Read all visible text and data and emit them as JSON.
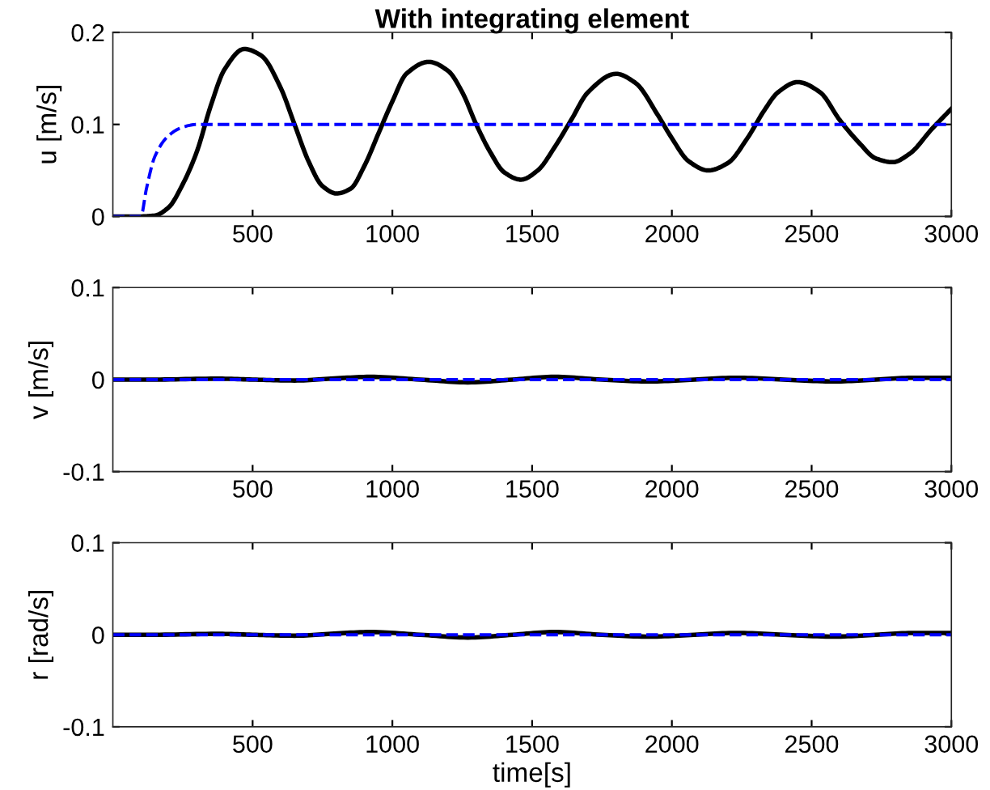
{
  "chart_data": [
    {
      "type": "line",
      "title": "With integrating element",
      "ylabel": "u [m/s]",
      "xlim": [
        0,
        3000
      ],
      "xticks": [
        500,
        1000,
        1500,
        2000,
        2500,
        3000
      ],
      "ylim": [
        0,
        0.2
      ],
      "yticks": [
        0,
        0.1,
        0.2
      ],
      "series": [
        {
          "color": "#000000",
          "line_style": "solid",
          "x": [
            0,
            100,
            150,
            200,
            250,
            300,
            350,
            400,
            470,
            530,
            600,
            650,
            700,
            750,
            800,
            850,
            900,
            950,
            1000,
            1050,
            1130,
            1200,
            1250,
            1300,
            1350,
            1400,
            1460,
            1520,
            1580,
            1640,
            1700,
            1800,
            1870,
            1950,
            2000,
            2060,
            2130,
            2200,
            2270,
            2330,
            2380,
            2450,
            2530,
            2600,
            2670,
            2730,
            2790,
            2850,
            2930,
            3000
          ],
          "values": [
            0,
            0,
            0.001,
            0.01,
            0.035,
            0.07,
            0.12,
            0.16,
            0.182,
            0.175,
            0.14,
            0.1,
            0.06,
            0.033,
            0.025,
            0.03,
            0.055,
            0.09,
            0.125,
            0.155,
            0.168,
            0.158,
            0.135,
            0.1,
            0.07,
            0.048,
            0.04,
            0.05,
            0.075,
            0.105,
            0.135,
            0.155,
            0.145,
            0.11,
            0.085,
            0.06,
            0.05,
            0.058,
            0.085,
            0.115,
            0.135,
            0.146,
            0.135,
            0.105,
            0.08,
            0.063,
            0.059,
            0.068,
            0.095,
            0.117
          ]
        },
        {
          "color": "#0000ff",
          "line_style": "dashed",
          "x": [
            0,
            100,
            120,
            150,
            200,
            250,
            300,
            3000
          ],
          "values": [
            0,
            0,
            0.03,
            0.065,
            0.088,
            0.097,
            0.1,
            0.1
          ]
        }
      ]
    },
    {
      "type": "line",
      "ylabel": "v [m/s]",
      "xlim": [
        0,
        3000
      ],
      "xticks": [
        500,
        1000,
        1500,
        2000,
        2500,
        3000
      ],
      "ylim": [
        -0.1,
        0.1
      ],
      "yticks": [
        {
          "value": -0.1,
          "label": "-0.1"
        },
        0,
        0.1
      ],
      "series": [
        {
          "color": "#000000",
          "line_style": "solid",
          "x": [
            0,
            150,
            370,
            500,
            650,
            780,
            920,
            1100,
            1270,
            1430,
            1580,
            1750,
            1920,
            2080,
            2230,
            2400,
            2580,
            2730,
            2870,
            3000
          ],
          "values": [
            0,
            0,
            0.001,
            0,
            -0.001,
            0.001,
            0.003,
            0,
            -0.003,
            0,
            0.003,
            0,
            -0.002,
            0,
            0.002,
            0,
            -0.002,
            0,
            0.002,
            0.002
          ]
        },
        {
          "color": "#0000ff",
          "line_style": "dashed",
          "x": [
            0,
            3000
          ],
          "values": [
            0,
            0
          ]
        }
      ]
    },
    {
      "type": "line",
      "ylabel": "r [rad/s]",
      "xlabel": "time[s]",
      "xlim": [
        0,
        3000
      ],
      "xticks": [
        500,
        1000,
        1500,
        2000,
        2500,
        3000
      ],
      "ylim": [
        -0.1,
        0.1
      ],
      "yticks": [
        {
          "value": -0.1,
          "label": "-0.1"
        },
        0,
        0.1
      ],
      "series": [
        {
          "color": "#000000",
          "line_style": "solid",
          "x": [
            0,
            150,
            370,
            500,
            650,
            780,
            920,
            1100,
            1270,
            1430,
            1580,
            1750,
            1920,
            2080,
            2230,
            2400,
            2580,
            2730,
            2870,
            3000
          ],
          "values": [
            0,
            0,
            0.001,
            0,
            -0.001,
            0.001,
            0.003,
            0,
            -0.003,
            0,
            0.003,
            0,
            -0.002,
            0,
            0.002,
            0,
            -0.002,
            0,
            0.002,
            0.002
          ]
        },
        {
          "color": "#0000ff",
          "line_style": "dashed",
          "x": [
            0,
            3000
          ],
          "values": [
            0,
            0
          ]
        }
      ]
    }
  ]
}
